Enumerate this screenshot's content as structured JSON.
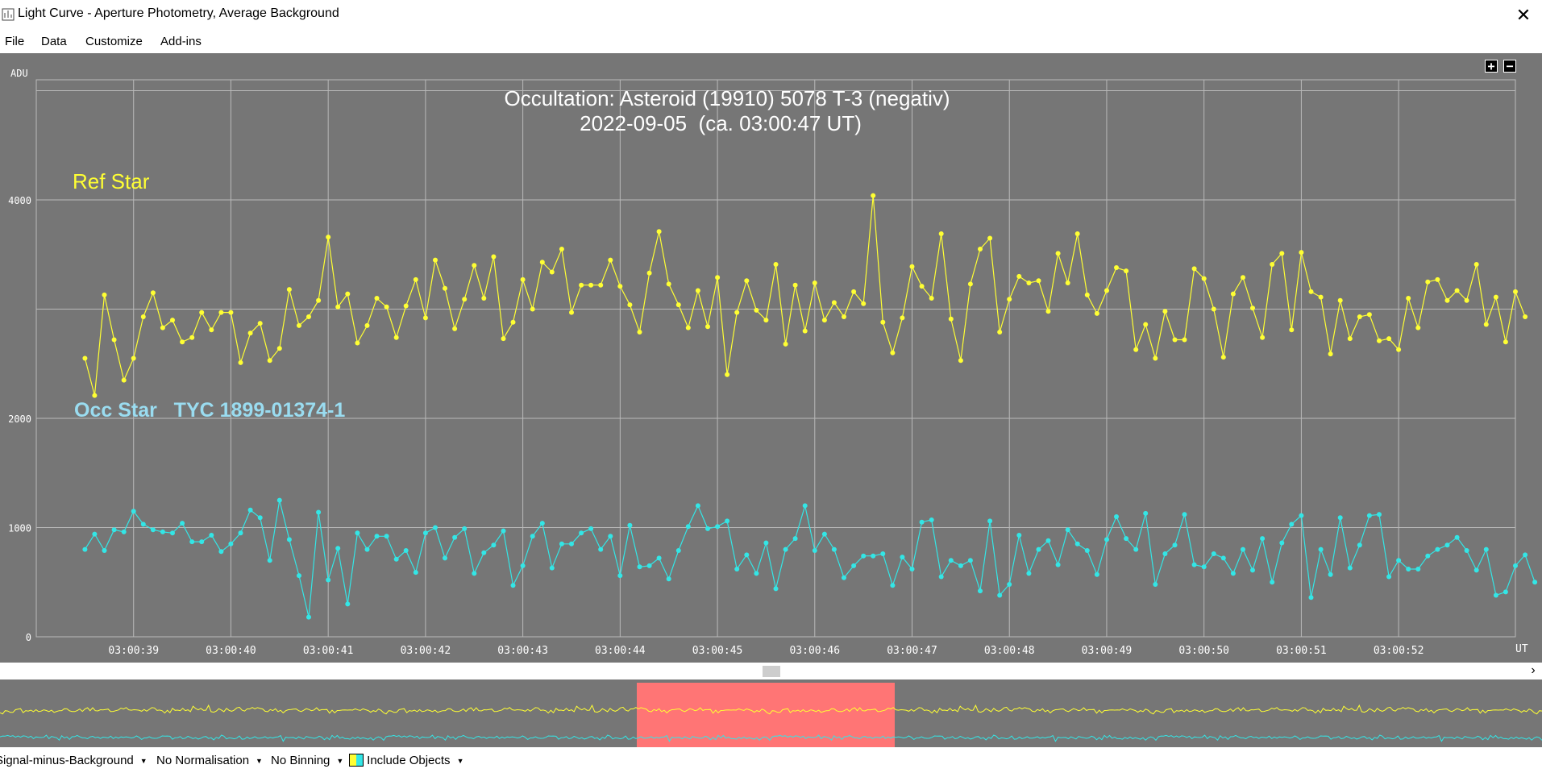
{
  "window": {
    "title": "Light Curve - Aperture Photometry, Average Background",
    "close_glyph": "✕",
    "icon": "light-curve-app-icon"
  },
  "menu": [
    "File",
    "Data",
    "Customize",
    "Add-ins"
  ],
  "zoom": {
    "plus": "+",
    "minus": "−"
  },
  "chart_data": {
    "type": "line",
    "title": "Occultation: Asteroid (19910) 5078 T-3 (negativ)",
    "subtitle": "2022-09-05  (ca. 03:00:47 UT)",
    "ylabel": "ADU",
    "xlabel": "UT",
    "ylim": [
      0,
      5100
    ],
    "yticks": [
      0,
      1000,
      2000,
      4000
    ],
    "x_tick_labels": [
      "03:00:39",
      "03:00:40",
      "03:00:41",
      "03:00:42",
      "03:00:43",
      "03:00:44",
      "03:00:45",
      "03:00:46",
      "03:00:47",
      "03:00:48",
      "03:00:49",
      "03:00:50",
      "03:00:51",
      "03:00:52"
    ],
    "grid": true,
    "colors": {
      "background": "#767676",
      "grid": "#b9b9b9",
      "ref": "#ffff33",
      "occ": "#33e6e6",
      "ref_label": "#ffff33",
      "occ_label": "#9adcf0"
    },
    "x": {
      "start_time": "03:00:38.5",
      "step_seconds": 0.1,
      "range_seconds": [
        38.0,
        53.2
      ]
    },
    "series": [
      {
        "name": "Ref Star",
        "values": [
          2550,
          2210,
          3130,
          2720,
          2350,
          2550,
          2930,
          3150,
          2830,
          2900,
          2700,
          2740,
          2970,
          2810,
          2970,
          2970,
          2510,
          2780,
          2870,
          2530,
          2640,
          3180,
          2850,
          2930,
          3080,
          3660,
          3020,
          3140,
          2690,
          2850,
          3100,
          3020,
          2740,
          3030,
          3270,
          2920,
          3450,
          3190,
          2820,
          3090,
          3400,
          3100,
          3480,
          2730,
          2880,
          3270,
          3000,
          3430,
          3340,
          3550,
          2970,
          3220,
          3220,
          3220,
          3450,
          3210,
          3040,
          2790,
          3330,
          3710,
          3230,
          3040,
          2830,
          3170,
          2840,
          3290,
          2400,
          2970,
          3260,
          2990,
          2900,
          3410,
          2680,
          3220,
          2800,
          3240,
          2900,
          3060,
          2930,
          3160,
          3050,
          4040,
          2880,
          2600,
          2920,
          3390,
          3210,
          3100,
          3690,
          2910,
          2530,
          3230,
          3550,
          3650,
          2790,
          3090,
          3300,
          3240,
          3260,
          2980,
          3510,
          3240,
          3690,
          3130,
          2960,
          3170,
          3380,
          3350,
          2630,
          2860,
          2550,
          2980,
          2720,
          2720,
          3370,
          3280,
          3000,
          2560,
          3140,
          3290,
          3010,
          2740,
          3410,
          3510,
          2810,
          3520,
          3160,
          3110,
          2590,
          3080,
          2730,
          2930,
          2950,
          2710,
          2730,
          2630,
          3100,
          2830,
          3250,
          3270,
          3080,
          3170,
          3080,
          3410,
          2860,
          3110,
          2700,
          3160,
          2930
        ]
      },
      {
        "name": "Occ Star   TYC 1899-01374-1",
        "values": [
          800,
          940,
          790,
          980,
          960,
          1150,
          1030,
          980,
          960,
          950,
          1040,
          870,
          870,
          930,
          780,
          850,
          950,
          1160,
          1090,
          700,
          1250,
          890,
          560,
          180,
          1140,
          520,
          810,
          300,
          950,
          800,
          920,
          920,
          710,
          790,
          590,
          950,
          1000,
          720,
          910,
          990,
          580,
          770,
          840,
          970,
          470,
          650,
          920,
          1040,
          630,
          850,
          850,
          950,
          990,
          800,
          920,
          560,
          1020,
          640,
          650,
          720,
          530,
          790,
          1010,
          1200,
          990,
          1010,
          1060,
          620,
          750,
          580,
          860,
          440,
          800,
          900,
          1200,
          790,
          940,
          800,
          540,
          650,
          740,
          740,
          760,
          470,
          730,
          620,
          1050,
          1070,
          550,
          700,
          650,
          700,
          420,
          1060,
          380,
          480,
          930,
          580,
          800,
          880,
          660,
          980,
          850,
          790,
          570,
          890,
          1100,
          900,
          800,
          1130,
          480,
          760,
          840,
          1120,
          660,
          640,
          760,
          720,
          580,
          800,
          610,
          900,
          500,
          860,
          1030,
          1110,
          360,
          800,
          570,
          1090,
          630,
          840,
          1110,
          1120,
          550,
          700,
          620,
          620,
          740,
          800,
          840,
          910,
          790,
          610,
          800,
          380,
          410,
          650,
          750,
          500
        ]
      }
    ],
    "labels": {
      "ref": "Ref Star",
      "occ": "Occ Star   TYC 1899-01374-1"
    },
    "overview_highlight_color": "#ff7575"
  },
  "statusbar": {
    "signal": "Signal-minus-Background",
    "normalisation": "No Normalisation",
    "binning": "No Binning",
    "objects": "Include Objects"
  },
  "scroll": {
    "right_glyph": "›"
  }
}
